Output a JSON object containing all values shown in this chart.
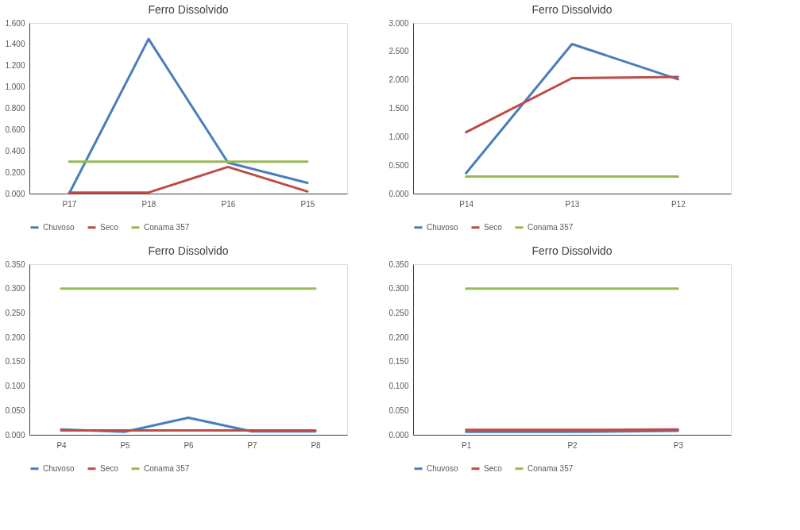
{
  "chart_data": [
    {
      "type": "line",
      "title": "Ferro Dissolvido",
      "categories": [
        "P17",
        "P18",
        "P16",
        "P15"
      ],
      "series": [
        {
          "name": "Chuvoso",
          "color": "#4a7ebb",
          "values": [
            0.0,
            1.45,
            0.29,
            0.1
          ]
        },
        {
          "name": "Seco",
          "color": "#be4b48",
          "values": [
            0.01,
            0.01,
            0.25,
            0.02
          ]
        },
        {
          "name": "Conama 357",
          "color": "#98b954",
          "values": [
            0.3,
            0.3,
            0.3,
            0.3
          ]
        }
      ],
      "ylim": [
        0,
        1.6
      ],
      "yticks": [
        {
          "value": 0,
          "label": "0.000"
        },
        {
          "value": 0.2,
          "label": "0.200"
        },
        {
          "value": 0.4,
          "label": "0.400"
        },
        {
          "value": 0.6,
          "label": "0.600"
        },
        {
          "value": 0.8,
          "label": "0.800"
        },
        {
          "value": 1.0,
          "label": "1.000"
        },
        {
          "value": 1.2,
          "label": "1.200"
        },
        {
          "value": 1.4,
          "label": "1.400"
        },
        {
          "value": 1.6,
          "label": "1.600"
        }
      ],
      "grid": false,
      "legend": "bottom",
      "marker": "none",
      "line_style": "solid"
    },
    {
      "type": "line",
      "title": "Ferro Dissolvido",
      "categories": [
        "P14",
        "P13",
        "P12"
      ],
      "series": [
        {
          "name": "Chuvoso",
          "color": "#4a7ebb",
          "values": [
            0.36,
            2.63,
            2.01
          ]
        },
        {
          "name": "Seco",
          "color": "#be4b48",
          "values": [
            1.08,
            2.03,
            2.05
          ]
        },
        {
          "name": "Conama 357",
          "color": "#98b954",
          "values": [
            0.3,
            0.3,
            0.3
          ]
        }
      ],
      "ylim": [
        0,
        3.0
      ],
      "yticks": [
        {
          "value": 0,
          "label": "0.000"
        },
        {
          "value": 0.5,
          "label": "0.500"
        },
        {
          "value": 1.0,
          "label": "1.000"
        },
        {
          "value": 1.5,
          "label": "1.500"
        },
        {
          "value": 2.0,
          "label": "2.000"
        },
        {
          "value": 2.5,
          "label": "2.500"
        },
        {
          "value": 3.0,
          "label": "3.000"
        }
      ],
      "grid": false,
      "legend": "bottom",
      "marker": "none",
      "line_style": "solid"
    },
    {
      "type": "line",
      "title": "Ferro Dissolvido",
      "categories": [
        "P4",
        "P5",
        "P6",
        "P7",
        "P8"
      ],
      "series": [
        {
          "name": "Chuvoso",
          "color": "#4a7ebb",
          "values": [
            0.011,
            0.006,
            0.035,
            0.007,
            0.007
          ]
        },
        {
          "name": "Seco",
          "color": "#be4b48",
          "values": [
            0.009,
            0.009,
            0.009,
            0.009,
            0.009
          ]
        },
        {
          "name": "Conama 357",
          "color": "#98b954",
          "values": [
            0.3,
            0.3,
            0.3,
            0.3,
            0.3
          ]
        }
      ],
      "ylim": [
        0,
        0.35
      ],
      "yticks": [
        {
          "value": 0,
          "label": "0.000"
        },
        {
          "value": 0.05,
          "label": "0.050"
        },
        {
          "value": 0.1,
          "label": "0.100"
        },
        {
          "value": 0.15,
          "label": "0.150"
        },
        {
          "value": 0.2,
          "label": "0.200"
        },
        {
          "value": 0.25,
          "label": "0.250"
        },
        {
          "value": 0.3,
          "label": "0.300"
        },
        {
          "value": 0.35,
          "label": "0.350"
        }
      ],
      "grid": false,
      "legend": "bottom",
      "marker": "none",
      "line_style": "solid"
    },
    {
      "type": "line",
      "title": "Ferro Dissolvido",
      "categories": [
        "P1",
        "P2",
        "P3"
      ],
      "series": [
        {
          "name": "Chuvoso",
          "color": "#4a7ebb",
          "values": [
            0.006,
            0.006,
            0.008
          ]
        },
        {
          "name": "Seco",
          "color": "#be4b48",
          "values": [
            0.01,
            0.01,
            0.011
          ]
        },
        {
          "name": "Conama 357",
          "color": "#98b954",
          "values": [
            0.3,
            0.3,
            0.3
          ]
        }
      ],
      "ylim": [
        0,
        0.35
      ],
      "yticks": [
        {
          "value": 0,
          "label": "0.000"
        },
        {
          "value": 0.05,
          "label": "0.050"
        },
        {
          "value": 0.1,
          "label": "0.100"
        },
        {
          "value": 0.15,
          "label": "0.150"
        },
        {
          "value": 0.2,
          "label": "0.200"
        },
        {
          "value": 0.25,
          "label": "0.250"
        },
        {
          "value": 0.3,
          "label": "0.300"
        },
        {
          "value": 0.35,
          "label": "0.350"
        }
      ],
      "grid": false,
      "legend": "bottom",
      "marker": "none",
      "line_style": "solid"
    }
  ]
}
